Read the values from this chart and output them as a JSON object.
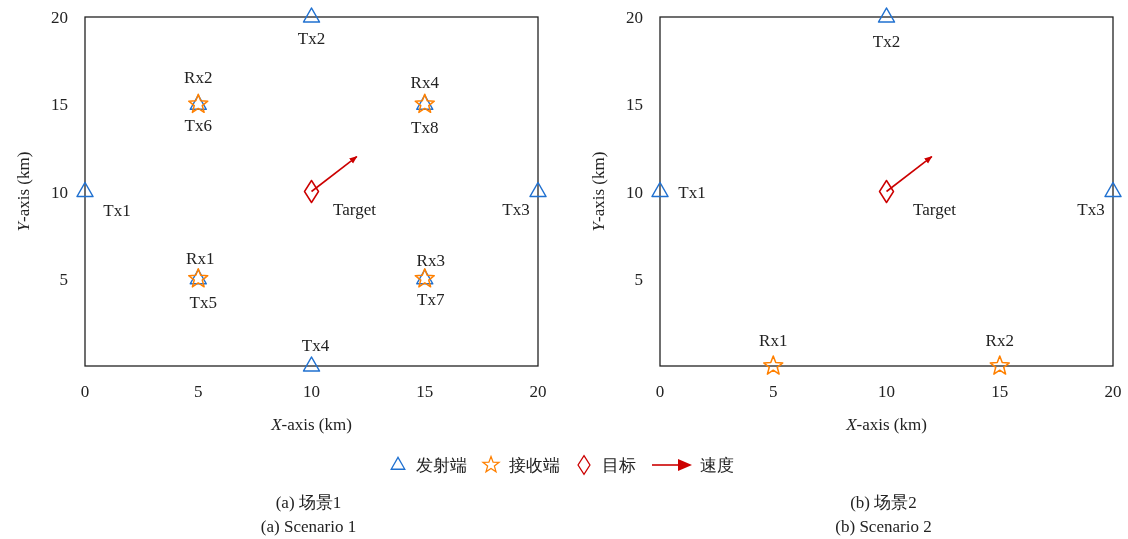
{
  "chart_data": [
    {
      "type": "scatter",
      "title": "(a) 场景1",
      "subtitle": "(a) Scenario 1",
      "xlabel": "*X*-axis (km)",
      "ylabel": "*Y*-axis (km)",
      "xlim": [
        0,
        20
      ],
      "ylim": [
        0,
        20
      ],
      "xticks": [
        0,
        5,
        10,
        15,
        20
      ],
      "yticks": [
        5,
        10,
        15,
        20
      ],
      "grid": false,
      "legend": "bottom",
      "series": [
        {
          "name": "发射端",
          "color": "#1f70d0",
          "marker": "triangle",
          "x": [
            0,
            10,
            20,
            10,
            5,
            5,
            15,
            15
          ],
          "values": [
            10,
            20,
            10,
            0,
            5,
            15,
            5,
            15
          ]
        },
        {
          "name": "接收端",
          "color": "#ff8000",
          "marker": "star",
          "x": [
            5,
            5,
            15,
            15
          ],
          "values": [
            5,
            15,
            5,
            15
          ]
        },
        {
          "name": "目标",
          "color": "#cc0000",
          "marker": "diamond",
          "x": [
            10
          ],
          "values": [
            10
          ]
        },
        {
          "name": "速度",
          "type": "line",
          "color": "#cc0000",
          "x": [
            10,
            12
          ],
          "values": [
            10,
            12
          ]
        }
      ],
      "annotations": [
        {
          "text": "Tx1",
          "x": 0,
          "y": 10
        },
        {
          "text": "Tx2",
          "x": 10,
          "y": 20
        },
        {
          "text": "Tx3",
          "x": 20,
          "y": 10
        },
        {
          "text": "Tx4",
          "x": 10,
          "y": 0
        },
        {
          "text": "Tx5",
          "x": 5,
          "y": 5
        },
        {
          "text": "Tx6",
          "x": 5,
          "y": 15
        },
        {
          "text": "Tx7",
          "x": 15,
          "y": 5
        },
        {
          "text": "Tx8",
          "x": 15,
          "y": 15
        },
        {
          "text": "Rx1",
          "x": 5,
          "y": 5
        },
        {
          "text": "Rx2",
          "x": 5,
          "y": 15
        },
        {
          "text": "Rx3",
          "x": 15,
          "y": 5
        },
        {
          "text": "Rx4",
          "x": 15,
          "y": 15
        },
        {
          "text": "Target",
          "x": 10,
          "y": 10
        }
      ]
    },
    {
      "type": "scatter",
      "title": "(b) 场景2",
      "subtitle": "(b) Scenario 2",
      "xlabel": "*X*-axis (km)",
      "ylabel": "*Y*-axis (km)",
      "xlim": [
        0,
        20
      ],
      "ylim": [
        0,
        20
      ],
      "xticks": [
        0,
        5,
        10,
        15,
        20
      ],
      "yticks": [
        5,
        10,
        15,
        20
      ],
      "grid": false,
      "series": [
        {
          "color": "#1f70d0",
          "marker": "triangle",
          "x": [
            0,
            10,
            20
          ],
          "values": [
            10,
            20,
            10
          ]
        },
        {
          "color": "#ff8000",
          "marker": "star",
          "x": [
            5,
            15
          ],
          "values": [
            0,
            0
          ]
        },
        {
          "color": "#cc0000",
          "marker": "diamond",
          "x": [
            10
          ],
          "values": [
            10
          ]
        },
        {
          "type": "line",
          "color": "#cc0000",
          "x": [
            10,
            12
          ],
          "values": [
            10,
            12
          ]
        }
      ],
      "annotations": [
        {
          "text": "Tx1",
          "x": 0,
          "y": 10
        },
        {
          "text": "Tx2",
          "x": 10,
          "y": 20
        },
        {
          "text": "Tx3",
          "x": 20,
          "y": 10
        },
        {
          "text": "Rx1",
          "x": 5,
          "y": 0
        },
        {
          "text": "Rx2",
          "x": 15,
          "y": 0
        },
        {
          "text": "Target",
          "x": 10,
          "y": 10
        }
      ]
    }
  ]
}
